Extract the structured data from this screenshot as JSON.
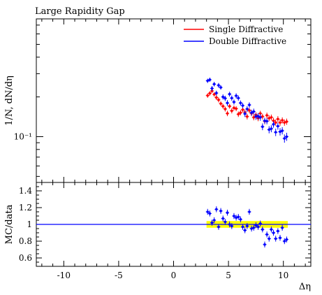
{
  "chart_data": [
    {
      "type": "scatter",
      "title": "Large Rapidity Gap",
      "ylabel": "1/N, dN/dη",
      "xlabel": "",
      "yscale": "log",
      "xlim": [
        -12.5,
        12.5
      ],
      "ylim": [
        0.045,
        0.78
      ],
      "yticks": [
        {
          "value": 0.1,
          "label": "10⁻¹"
        }
      ],
      "legend_position": "top-right",
      "series": [
        {
          "name": "Single Diffractive",
          "color": "#ff0000",
          "x": [
            3.1,
            3.3,
            3.5,
            3.7,
            3.9,
            4.1,
            4.3,
            4.5,
            4.7,
            4.9,
            5.1,
            5.3,
            5.5,
            5.7,
            5.9,
            6.1,
            6.3,
            6.5,
            6.7,
            6.9,
            7.1,
            7.3,
            7.5,
            7.7,
            7.9,
            8.1,
            8.3,
            8.5,
            8.7,
            8.9,
            9.1,
            9.3,
            9.5,
            9.7,
            9.9,
            10.1,
            10.3
          ],
          "y": [
            0.205,
            0.213,
            0.222,
            0.209,
            0.198,
            0.19,
            0.178,
            0.17,
            0.162,
            0.15,
            0.17,
            0.157,
            0.165,
            0.163,
            0.148,
            0.152,
            0.16,
            0.153,
            0.142,
            0.158,
            0.15,
            0.14,
            0.146,
            0.138,
            0.15,
            0.142,
            0.131,
            0.145,
            0.138,
            0.14,
            0.132,
            0.128,
            0.136,
            0.128,
            0.133,
            0.128,
            0.13
          ],
          "err": [
            0.008,
            0.008,
            0.008,
            0.008,
            0.008,
            0.008,
            0.007,
            0.007,
            0.007,
            0.007,
            0.007,
            0.007,
            0.007,
            0.007,
            0.007,
            0.007,
            0.007,
            0.007,
            0.007,
            0.007,
            0.007,
            0.007,
            0.007,
            0.007,
            0.007,
            0.007,
            0.007,
            0.007,
            0.007,
            0.007,
            0.007,
            0.007,
            0.007,
            0.007,
            0.007,
            0.007,
            0.007
          ]
        },
        {
          "name": "Double Diffractive",
          "color": "#0000ff",
          "x": [
            3.1,
            3.3,
            3.5,
            3.7,
            3.9,
            4.1,
            4.3,
            4.5,
            4.7,
            4.9,
            5.1,
            5.3,
            5.5,
            5.7,
            5.9,
            6.1,
            6.3,
            6.5,
            6.7,
            6.9,
            7.1,
            7.3,
            7.5,
            7.7,
            7.9,
            8.1,
            8.3,
            8.5,
            8.7,
            8.9,
            9.1,
            9.3,
            9.5,
            9.7,
            9.9,
            10.1,
            10.3
          ],
          "y": [
            0.265,
            0.27,
            0.232,
            0.25,
            0.214,
            0.245,
            0.236,
            0.2,
            0.195,
            0.18,
            0.21,
            0.196,
            0.183,
            0.204,
            0.196,
            0.18,
            0.172,
            0.149,
            0.162,
            0.174,
            0.152,
            0.155,
            0.142,
            0.143,
            0.14,
            0.119,
            0.132,
            0.131,
            0.113,
            0.115,
            0.124,
            0.108,
            0.12,
            0.109,
            0.111,
            0.097,
            0.1
          ],
          "err": [
            0.01,
            0.01,
            0.01,
            0.01,
            0.009,
            0.01,
            0.009,
            0.009,
            0.009,
            0.009,
            0.009,
            0.009,
            0.008,
            0.009,
            0.009,
            0.008,
            0.008,
            0.008,
            0.008,
            0.008,
            0.008,
            0.008,
            0.008,
            0.008,
            0.008,
            0.007,
            0.007,
            0.007,
            0.007,
            0.007,
            0.007,
            0.007,
            0.007,
            0.007,
            0.007,
            0.007,
            0.007
          ]
        }
      ]
    },
    {
      "type": "scatter",
      "ylabel": "MC/data",
      "xlabel": "Δη",
      "xlim": [
        -12.5,
        12.5
      ],
      "ylim": [
        0.5,
        1.5
      ],
      "xticks": [
        -10,
        -5,
        0,
        5,
        10
      ],
      "yticks": [
        0.6,
        0.8,
        1,
        1.2,
        1.4
      ],
      "reference_line": {
        "y": 1,
        "color": "#0000ff"
      },
      "uncertainty_band": {
        "x": [
          3.0,
          10.4
        ],
        "y": [
          0.96,
          1.04
        ],
        "color": "#ffff00"
      },
      "series": [
        {
          "name": "Double Diffractive",
          "color": "#0000ff",
          "x": [
            3.1,
            3.3,
            3.5,
            3.7,
            3.9,
            4.1,
            4.3,
            4.5,
            4.7,
            4.9,
            5.1,
            5.3,
            5.5,
            5.7,
            5.9,
            6.1,
            6.3,
            6.5,
            6.7,
            6.9,
            7.1,
            7.3,
            7.5,
            7.7,
            7.9,
            8.1,
            8.3,
            8.5,
            8.7,
            8.9,
            9.1,
            9.3,
            9.5,
            9.7,
            9.9,
            10.1,
            10.3
          ],
          "y": [
            1.15,
            1.13,
            1.02,
            1.05,
            1.18,
            0.97,
            1.16,
            1.07,
            1.03,
            1.14,
            1.0,
            0.98,
            1.1,
            1.08,
            1.09,
            1.06,
            0.97,
            0.93,
            0.98,
            1.15,
            0.95,
            0.96,
            0.99,
            0.97,
            1.01,
            0.94,
            0.76,
            0.88,
            0.83,
            0.94,
            0.9,
            0.83,
            0.92,
            0.84,
            0.96,
            0.8,
            0.82
          ],
          "err": [
            0.035,
            0.035,
            0.035,
            0.035,
            0.035,
            0.035,
            0.035,
            0.035,
            0.035,
            0.035,
            0.035,
            0.035,
            0.035,
            0.035,
            0.035,
            0.035,
            0.035,
            0.035,
            0.035,
            0.035,
            0.035,
            0.035,
            0.035,
            0.035,
            0.035,
            0.035,
            0.035,
            0.035,
            0.035,
            0.035,
            0.035,
            0.035,
            0.035,
            0.035,
            0.035,
            0.035,
            0.035
          ]
        }
      ]
    }
  ]
}
